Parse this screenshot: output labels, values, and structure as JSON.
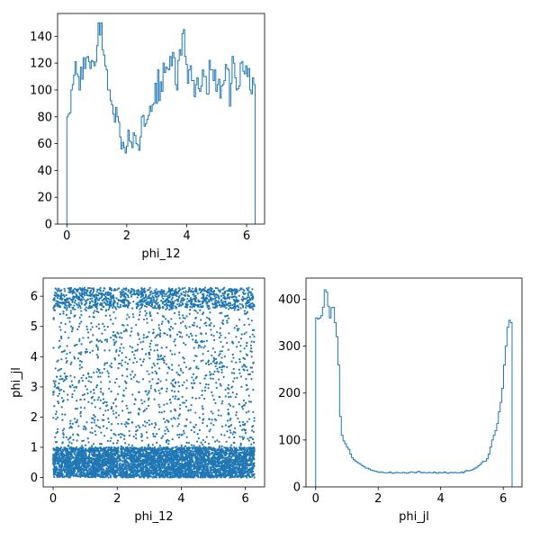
{
  "chart_data": [
    {
      "type": "histogram",
      "xlabel": "phi_12",
      "ylabel": "",
      "title": "",
      "xlim": [
        -0.31,
        6.6
      ],
      "ylim": [
        0,
        157
      ],
      "xticks": [
        0,
        2,
        4,
        6
      ],
      "yticks": [
        0,
        20,
        40,
        60,
        80,
        100,
        120,
        140
      ],
      "bin_range": [
        0,
        6.283
      ],
      "color": "#1f77b4",
      "counts": [
        80,
        82,
        83,
        100,
        104,
        111,
        121,
        112,
        110,
        100,
        117,
        108,
        124,
        116,
        124,
        125,
        121,
        116,
        122,
        121,
        118,
        121,
        133,
        150,
        141,
        150,
        130,
        126,
        118,
        115,
        100,
        100,
        92,
        89,
        82,
        76,
        87,
        80,
        76,
        65,
        56,
        61,
        57,
        53,
        58,
        70,
        62,
        61,
        57,
        68,
        66,
        60,
        59,
        55,
        65,
        80,
        81,
        73,
        75,
        78,
        81,
        88,
        84,
        89,
        90,
        105,
        90,
        115,
        92,
        106,
        99,
        120,
        113,
        117,
        116,
        115,
        125,
        118,
        128,
        124,
        104,
        100,
        122,
        130,
        126,
        142,
        145,
        125,
        119,
        105,
        115,
        118,
        107,
        107,
        95,
        104,
        109,
        101,
        99,
        103,
        115,
        110,
        110,
        97,
        97,
        122,
        115,
        115,
        107,
        115,
        99,
        104,
        108,
        94,
        103,
        104,
        107,
        119,
        116,
        115,
        88,
        105,
        125,
        120,
        109,
        100,
        101,
        103,
        120,
        121,
        114,
        112,
        118,
        110,
        116,
        100,
        97,
        109,
        104
      ]
    },
    {
      "type": "scatter",
      "xlabel": "phi_12",
      "ylabel": "phi_jl",
      "title": "",
      "xlim": [
        -0.31,
        6.6
      ],
      "ylim": [
        -0.31,
        6.6
      ],
      "xticks": [
        0,
        2,
        4,
        6
      ],
      "yticks": [
        0,
        1,
        2,
        3,
        4,
        5,
        6
      ],
      "color": "#1f77b4",
      "distribution": {
        "x_range": [
          0,
          6.28
        ],
        "y_range": [
          0,
          6.28
        ],
        "points": 7000,
        "dense_bands": [
          {
            "y_from": 0,
            "y_to": 1.0,
            "share": 0.62
          },
          {
            "y_from": 5.6,
            "y_to": 6.28,
            "share": 0.14
          }
        ]
      }
    },
    {
      "type": "histogram",
      "xlabel": "phi_jl",
      "ylabel": "",
      "title": "",
      "xlim": [
        -0.31,
        6.6
      ],
      "ylim": [
        0,
        445
      ],
      "xticks": [
        0,
        2,
        4,
        6
      ],
      "yticks": [
        0,
        100,
        200,
        300,
        400
      ],
      "bin_range": [
        0,
        6.283
      ],
      "color": "#1f77b4",
      "counts": [
        360,
        358,
        360,
        365,
        383,
        420,
        415,
        385,
        360,
        382,
        383,
        350,
        320,
        260,
        150,
        110,
        98,
        92,
        85,
        80,
        70,
        62,
        58,
        55,
        52,
        50,
        48,
        45,
        43,
        40,
        40,
        38,
        36,
        35,
        34,
        33,
        32,
        31,
        32,
        31,
        30,
        30,
        30,
        32,
        30,
        29,
        30,
        31,
        30,
        30,
        30,
        31,
        30,
        29,
        30,
        32,
        32,
        31,
        30,
        32,
        33,
        31,
        30,
        31,
        30,
        30,
        31,
        30,
        30,
        32,
        30,
        29,
        31,
        30,
        30,
        32,
        30,
        29,
        30,
        31,
        30,
        31,
        30,
        30,
        30,
        32,
        30,
        33,
        35,
        34,
        35,
        36,
        38,
        40,
        42,
        45,
        48,
        52,
        55,
        55,
        60,
        70,
        85,
        100,
        110,
        120,
        135,
        160,
        180,
        210,
        260,
        300,
        340,
        355,
        350
      ]
    }
  ]
}
